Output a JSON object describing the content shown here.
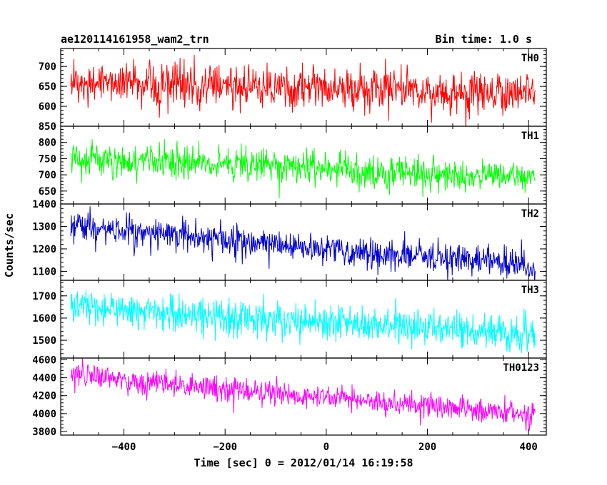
{
  "chart_data": {
    "type": "line",
    "title": "ae120114161958_wam2_trn",
    "subtitle": "Bin time: 1.0 s",
    "xlabel": "Time [sec] 0 = 2012/01/14 16:19:58",
    "ylabel": "Counts/sec",
    "xlim": [
      -525,
      435
    ],
    "x_ticks": [
      -400,
      -200,
      0,
      200,
      400
    ],
    "x_range": [
      -505,
      413
    ],
    "bin": 1.0,
    "grid": false,
    "panels": [
      {
        "name": "TH0",
        "color": "#ff0000",
        "ylim": [
          550,
          745
        ],
        "y_ticks": [
          600,
          650,
          700
        ],
        "y_tick_labels": [
          "600",
          "650",
          "700"
        ],
        "start": 662,
        "end": 632,
        "noise": 26
      },
      {
        "name": "TH1",
        "color": "#00ff00",
        "ylim": [
          610,
          850
        ],
        "y_ticks": [
          650,
          700,
          750,
          800,
          850
        ],
        "y_tick_labels": [
          "650",
          "700",
          "750",
          "800",
          "850"
        ],
        "start": 750,
        "end": 690,
        "noise": 25
      },
      {
        "name": "TH2",
        "color": "#0000cc",
        "ylim": [
          1060,
          1400
        ],
        "y_ticks": [
          1100,
          1200,
          1300,
          1400
        ],
        "y_tick_labels": [
          "1100",
          "1200",
          "1300",
          "1400"
        ],
        "start": 1300,
        "end": 1120,
        "noise": 35
      },
      {
        "name": "TH3",
        "color": "#00ffff",
        "ylim": [
          1420,
          1770
        ],
        "y_ticks": [
          1500,
          1600,
          1700
        ],
        "y_tick_labels": [
          "1500",
          "1600",
          "1700"
        ],
        "start": 1650,
        "end": 1530,
        "noise": 40
      },
      {
        "name": "TH0123",
        "color": "#ff00ff",
        "ylim": [
          3760,
          4620
        ],
        "y_ticks": [
          3800,
          4000,
          4200,
          4400,
          4600
        ],
        "y_tick_labels": [
          "3800",
          "4000",
          "4200",
          "4400",
          "4600"
        ],
        "start": 4420,
        "end": 3990,
        "noise": 70
      }
    ]
  }
}
